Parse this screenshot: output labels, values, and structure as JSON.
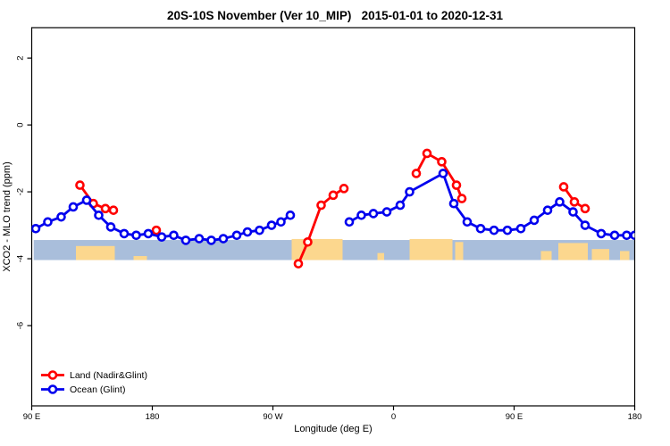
{
  "window": {
    "background": "#ffffff"
  },
  "chart_data": {
    "type": "line",
    "title": "20S-10S November (Ver 10_MIP)   2015-01-01 to 2020-12-31",
    "xlabel": "Longitude (deg E)",
    "ylabel": "XCO2 - MLO trend (ppm)",
    "x_axis": {
      "range_deg": [
        90,
        540
      ],
      "ticks": [
        {
          "deg": 90,
          "label": "90 E"
        },
        {
          "deg": 180,
          "label": "180"
        },
        {
          "deg": 270,
          "label": "90 W"
        },
        {
          "deg": 360,
          "label": "0"
        },
        {
          "deg": 450,
          "label": "90 E"
        },
        {
          "deg": 540,
          "label": "180"
        }
      ]
    },
    "y_axis": {
      "range": [
        -8.4,
        2.91
      ],
      "ticks": [
        {
          "v": 2,
          "label": "2"
        },
        {
          "v": 0,
          "label": "0"
        },
        {
          "v": -2,
          "label": "-2"
        },
        {
          "v": -4,
          "label": "-4"
        },
        {
          "v": -6,
          "label": "-6"
        }
      ]
    },
    "legend": {
      "items": [
        {
          "label": "Land (Nadir&Glint)",
          "color": "#ff0000"
        },
        {
          "label": "Ocean (Glint)",
          "color": "#0000ee"
        }
      ]
    },
    "map_band": {
      "from_deg": 91.5,
      "to_deg": 540,
      "v_top": -3.44,
      "v_bottom": -4.04,
      "ocean_color": "#a9bedb",
      "land_color": "#fcd78e",
      "land_patches_deg": [
        {
          "from": 123,
          "to": 152,
          "top": 0.3
        },
        {
          "from": 166,
          "to": 176,
          "top": 0.8
        },
        {
          "from": 284,
          "to": 322,
          "top": -0.05
        },
        {
          "from": 348,
          "to": 353,
          "top": 0.65
        },
        {
          "from": 372,
          "to": 404,
          "top": -0.05
        },
        {
          "from": 406,
          "to": 412,
          "top": 0.1
        },
        {
          "from": 470,
          "to": 478,
          "top": 0.55
        },
        {
          "from": 483,
          "to": 505,
          "top": 0.15
        },
        {
          "from": 508,
          "to": 521,
          "top": 0.45
        },
        {
          "from": 529,
          "to": 536,
          "top": 0.55
        }
      ]
    },
    "series": [
      {
        "name": "Land (Nadir&Glint)",
        "color": "#ff0000",
        "marker": "open-circle",
        "segments": [
          [
            [
              126,
              -1.8
            ],
            [
              136,
              -2.35
            ],
            [
              145,
              -2.5
            ],
            [
              151,
              -2.55
            ]
          ],
          [
            [
              183,
              -3.15
            ]
          ],
          [
            [
              289,
              -4.15
            ],
            [
              296,
              -3.5
            ],
            [
              306,
              -2.4
            ],
            [
              315,
              -2.1
            ],
            [
              323,
              -1.9
            ]
          ],
          [
            [
              377,
              -1.45
            ],
            [
              385,
              -0.85
            ],
            [
              396,
              -1.1
            ],
            [
              407,
              -1.8
            ],
            [
              411,
              -2.2
            ]
          ],
          [
            [
              487,
              -1.85
            ],
            [
              495,
              -2.3
            ],
            [
              503,
              -2.5
            ]
          ]
        ]
      },
      {
        "name": "Ocean (Glint)",
        "color": "#0000ee",
        "marker": "open-circle",
        "segments": [
          [
            [
              93,
              -3.1
            ],
            [
              102,
              -2.9
            ],
            [
              112,
              -2.75
            ],
            [
              121,
              -2.45
            ],
            [
              131,
              -2.25
            ],
            [
              140,
              -2.7
            ],
            [
              149,
              -3.05
            ],
            [
              159,
              -3.25
            ],
            [
              168,
              -3.3
            ],
            [
              177,
              -3.25
            ],
            [
              187,
              -3.35
            ],
            [
              196,
              -3.3
            ],
            [
              205,
              -3.45
            ],
            [
              215,
              -3.4
            ],
            [
              224,
              -3.45
            ],
            [
              233,
              -3.4
            ],
            [
              243,
              -3.3
            ],
            [
              251,
              -3.2
            ],
            [
              260,
              -3.15
            ],
            [
              269,
              -3.0
            ],
            [
              276,
              -2.9
            ],
            [
              283,
              -2.7
            ]
          ],
          [
            [
              327,
              -2.9
            ],
            [
              336,
              -2.7
            ],
            [
              345,
              -2.65
            ],
            [
              355,
              -2.6
            ],
            [
              365,
              -2.4
            ],
            [
              372,
              -2.0
            ],
            [
              397,
              -1.45
            ],
            [
              405,
              -2.35
            ],
            [
              415,
              -2.9
            ],
            [
              425,
              -3.1
            ],
            [
              435,
              -3.15
            ],
            [
              445,
              -3.15
            ],
            [
              455,
              -3.1
            ],
            [
              465,
              -2.85
            ],
            [
              475,
              -2.55
            ],
            [
              484,
              -2.3
            ],
            [
              494,
              -2.6
            ],
            [
              503,
              -3.0
            ],
            [
              515,
              -3.25
            ],
            [
              525,
              -3.3
            ],
            [
              534,
              -3.3
            ],
            [
              540,
              -3.3
            ]
          ]
        ]
      }
    ]
  }
}
